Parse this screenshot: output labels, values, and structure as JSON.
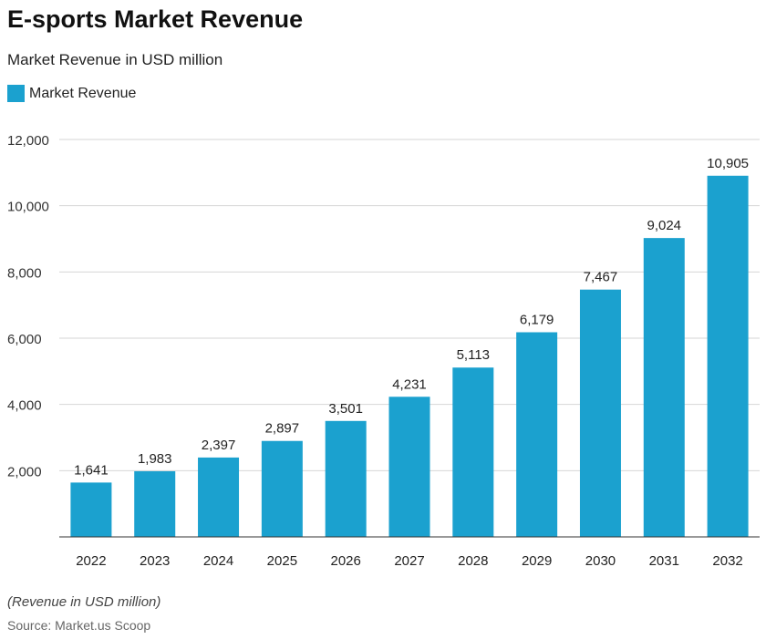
{
  "chart_data": {
    "type": "bar",
    "title": "E-sports Market Revenue",
    "subtitle": "Market Revenue in USD million",
    "categories": [
      "2022",
      "2023",
      "2024",
      "2025",
      "2026",
      "2027",
      "2028",
      "2029",
      "2030",
      "2031",
      "2032"
    ],
    "series": [
      {
        "name": "Market Revenue",
        "values": [
          1641,
          1983,
          2397,
          2897,
          3501,
          4231,
          5113,
          6179,
          7467,
          9024,
          10905
        ],
        "color": "#1ba1cf"
      }
    ],
    "data_labels": [
      "1,641",
      "1,983",
      "2,397",
      "2,897",
      "3,501",
      "4,231",
      "5,113",
      "6,179",
      "7,467",
      "9,024",
      "10,905"
    ],
    "ylim": [
      0,
      12000
    ],
    "yticks": [
      2000,
      4000,
      6000,
      8000,
      10000,
      12000
    ],
    "ytick_labels": [
      "2,000",
      "4,000",
      "6,000",
      "8,000",
      "10,000",
      "12,000"
    ],
    "grid": true,
    "legend": "top-left",
    "note": "(Revenue in USD million)",
    "source": "Source: Market.us Scoop"
  }
}
